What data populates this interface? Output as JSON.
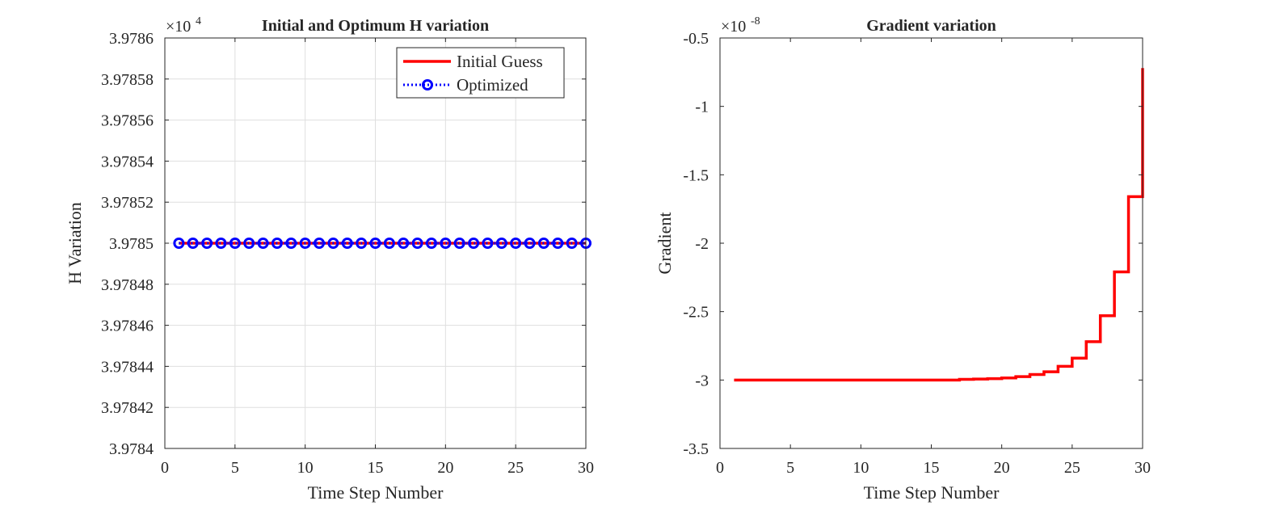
{
  "chart_data": [
    {
      "type": "line",
      "title": "Initial and Optimum H variation",
      "xlabel": "Time Step Number",
      "ylabel": "H Variation",
      "exponent_base": "×10",
      "exponent_power": "4",
      "xlim": [
        0,
        30
      ],
      "ylim": [
        3.9784,
        3.9786
      ],
      "xticks": [
        0,
        5,
        10,
        15,
        20,
        25,
        30
      ],
      "xtick_labels": [
        "0",
        "5",
        "10",
        "15",
        "20",
        "25",
        "30"
      ],
      "yticks": [
        3.9784,
        3.97842,
        3.97844,
        3.97846,
        3.97848,
        3.9785,
        3.97852,
        3.97854,
        3.97856,
        3.97858,
        3.9786
      ],
      "ytick_labels": [
        "3.9784",
        "3.97842",
        "3.97844",
        "3.97846",
        "3.97848",
        "3.9785",
        "3.97852",
        "3.97854",
        "3.97856",
        "3.97858",
        "3.9786"
      ],
      "grid": true,
      "legend_position": "top-right",
      "x": [
        1,
        2,
        3,
        4,
        5,
        6,
        7,
        8,
        9,
        10,
        11,
        12,
        13,
        14,
        15,
        16,
        17,
        18,
        19,
        20,
        21,
        22,
        23,
        24,
        25,
        26,
        27,
        28,
        29,
        30
      ],
      "series": [
        {
          "name": "Initial Guess",
          "style": "solid",
          "marker": "none",
          "color": "#ff0000",
          "values": [
            3.9785,
            3.9785,
            3.9785,
            3.9785,
            3.9785,
            3.9785,
            3.9785,
            3.9785,
            3.9785,
            3.9785,
            3.9785,
            3.9785,
            3.9785,
            3.9785,
            3.9785,
            3.9785,
            3.9785,
            3.9785,
            3.9785,
            3.9785,
            3.9785,
            3.9785,
            3.9785,
            3.9785,
            3.9785,
            3.9785,
            3.9785,
            3.9785,
            3.9785,
            3.9785
          ]
        },
        {
          "name": "Optimized",
          "style": "dotted",
          "marker": "circle",
          "color": "#0000ff",
          "values": [
            3.9785,
            3.9785,
            3.9785,
            3.9785,
            3.9785,
            3.9785,
            3.9785,
            3.9785,
            3.9785,
            3.9785,
            3.9785,
            3.9785,
            3.9785,
            3.9785,
            3.9785,
            3.9785,
            3.9785,
            3.9785,
            3.9785,
            3.9785,
            3.9785,
            3.9785,
            3.9785,
            3.9785,
            3.9785,
            3.9785,
            3.9785,
            3.9785,
            3.9785,
            3.9785
          ]
        }
      ]
    },
    {
      "type": "line",
      "title": "Gradient variation",
      "xlabel": "Time Step Number",
      "ylabel": "Gradient",
      "exponent_base": "×10",
      "exponent_power": "-8",
      "xlim": [
        0,
        30
      ],
      "ylim": [
        -3.5,
        -0.5
      ],
      "xticks": [
        0,
        5,
        10,
        15,
        20,
        25,
        30
      ],
      "xtick_labels": [
        "0",
        "5",
        "10",
        "15",
        "20",
        "25",
        "30"
      ],
      "yticks": [
        -3.5,
        -3,
        -2.5,
        -2,
        -1.5,
        -1,
        -0.5
      ],
      "ytick_labels": [
        "-3.5",
        "-3",
        "-2.5",
        "-2",
        "-1.5",
        "-1",
        "-0.5"
      ],
      "grid": false,
      "step": true,
      "x": [
        1,
        2,
        3,
        4,
        5,
        6,
        7,
        8,
        9,
        10,
        11,
        12,
        13,
        14,
        15,
        16,
        17,
        18,
        19,
        20,
        21,
        22,
        23,
        24,
        25,
        26,
        27,
        28,
        29,
        30
      ],
      "series": [
        {
          "color": "#ff0000",
          "values": [
            -3.0,
            -3.0,
            -3.0,
            -3.0,
            -3.0,
            -3.0,
            -3.0,
            -3.0,
            -3.0,
            -3.0,
            -3.0,
            -3.0,
            -3.0,
            -3.0,
            -3.0,
            -3.0,
            -2.995,
            -2.993,
            -2.99,
            -2.985,
            -2.975,
            -2.96,
            -2.94,
            -2.9,
            -2.84,
            -2.72,
            -2.53,
            -2.21,
            -1.66,
            -0.72
          ]
        }
      ]
    }
  ]
}
